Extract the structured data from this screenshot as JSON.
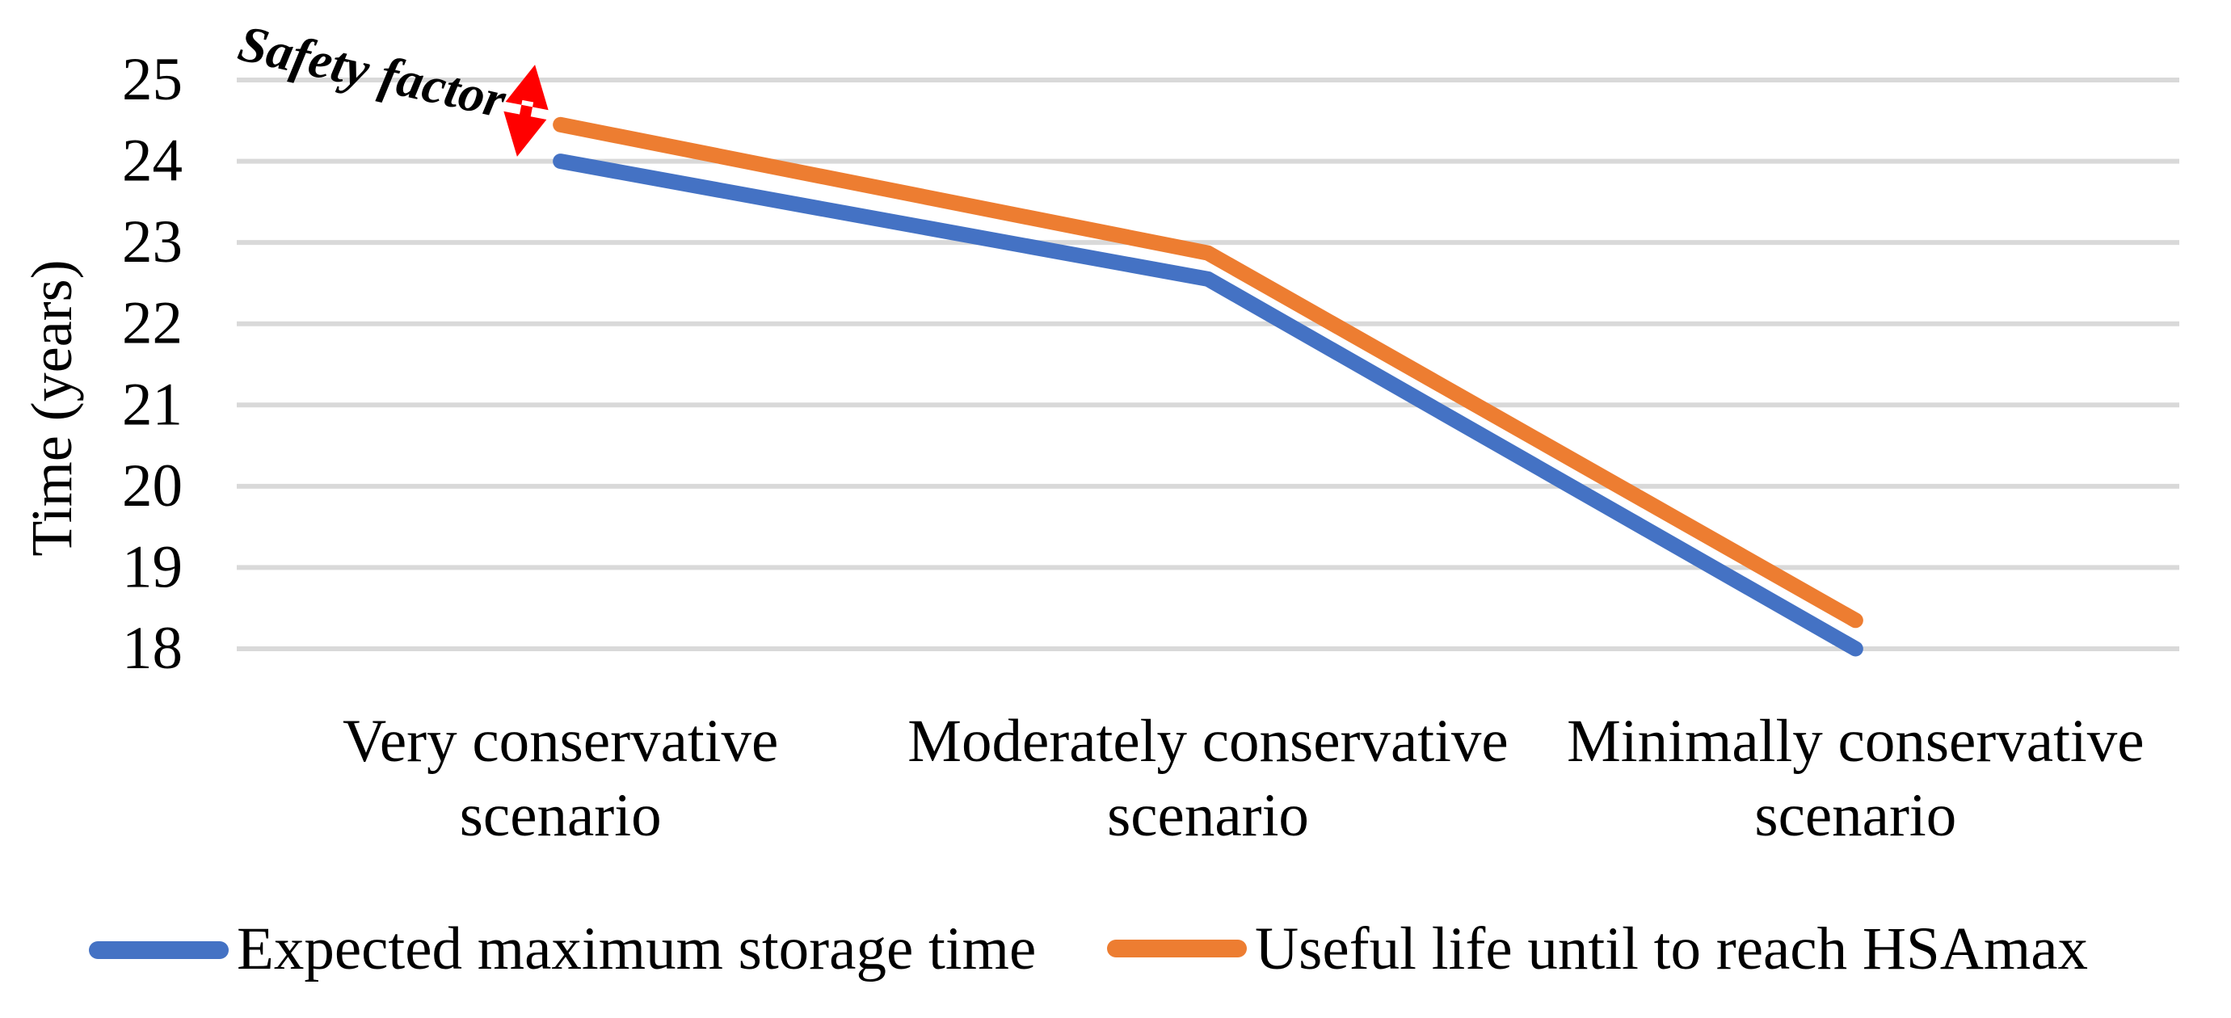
{
  "figure": {
    "background": "#FFFFFF"
  },
  "chart_data": {
    "type": "line",
    "categories": [
      [
        "Very conservative",
        "scenario"
      ],
      [
        "Moderately conservative",
        "scenario"
      ],
      [
        "Minimally conservative",
        "scenario"
      ]
    ],
    "series": [
      {
        "name": "Expected maximum storage time",
        "color": "#4472C4",
        "values": [
          24.0,
          22.55,
          18.0
        ]
      },
      {
        "name": "Useful life until to reach HSAmax",
        "color": "#ED7D31",
        "values": [
          24.45,
          22.87,
          18.35
        ]
      }
    ],
    "title": "",
    "xlabel": "",
    "ylabel": "Time (years)",
    "yticks": [
      25,
      24,
      23,
      22,
      21,
      20,
      19,
      18
    ],
    "ylim": [
      18,
      25
    ],
    "grid": true,
    "gridline_color": "#D9D9D9",
    "legend_position": "bottom",
    "annotation": {
      "label": "Safety factor",
      "color": "#FF0000",
      "points_to": "gap between the two lines at the first scenario"
    }
  }
}
